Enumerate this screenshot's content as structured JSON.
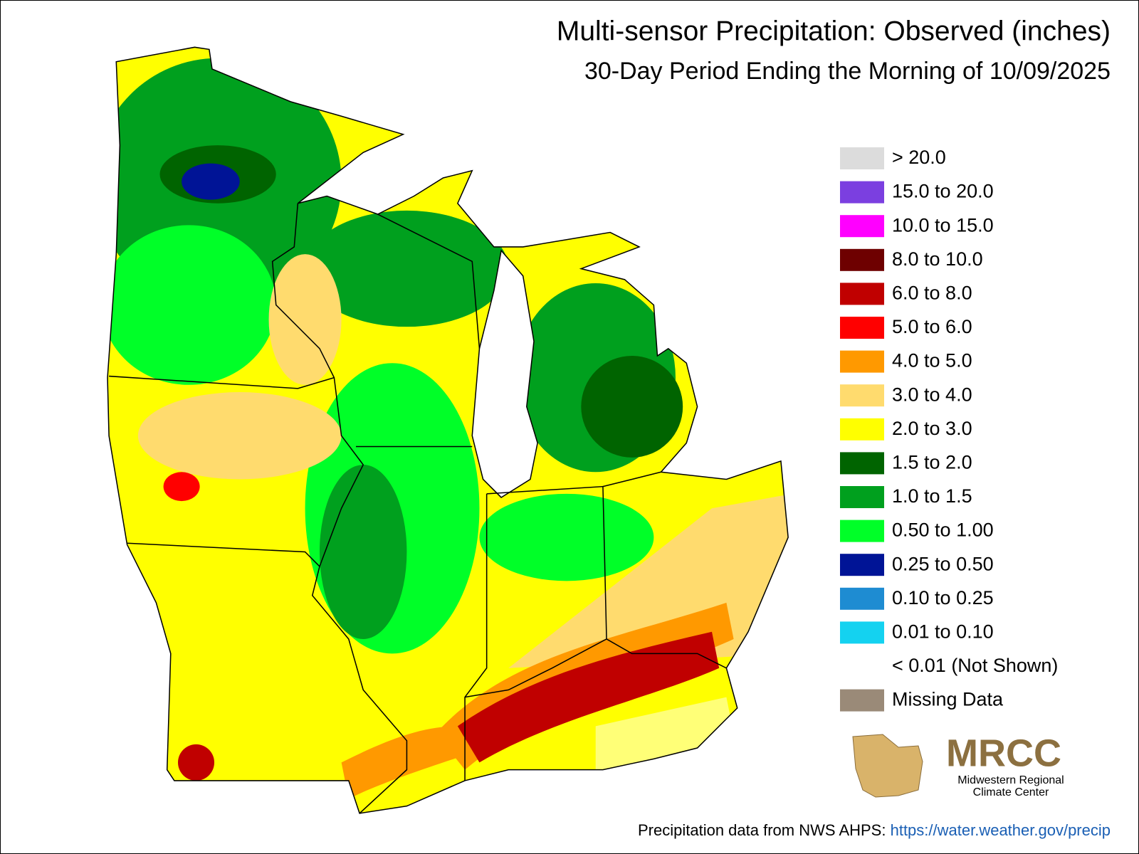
{
  "header": {
    "title": "Multi-sensor Precipitation: Observed (inches)",
    "subtitle": "30-Day Period Ending the Morning of 10/09/2025"
  },
  "legend": [
    {
      "label": "> 20.0",
      "color": "#dcdcdc"
    },
    {
      "label": "15.0 to 20.0",
      "color": "#7b3fe0"
    },
    {
      "label": "10.0 to 15.0",
      "color": "#ff00ff"
    },
    {
      "label": "8.0 to 10.0",
      "color": "#6e0000"
    },
    {
      "label": "6.0 to 8.0",
      "color": "#c00000"
    },
    {
      "label": "5.0 to 6.0",
      "color": "#ff0000"
    },
    {
      "label": "4.0 to 5.0",
      "color": "#ff9900"
    },
    {
      "label": "3.0 to 4.0",
      "color": "#ffdb6e"
    },
    {
      "label": "2.0 to 3.0",
      "color": "#ffff00"
    },
    {
      "label": "1.5 to 2.0",
      "color": "#006400"
    },
    {
      "label": "1.0 to 1.5",
      "color": "#00a01e"
    },
    {
      "label": "0.50 to 1.00",
      "color": "#00ff28"
    },
    {
      "label": "0.25 to 0.50",
      "color": "#001496"
    },
    {
      "label": "0.10 to 0.25",
      "color": "#1e8cd2"
    },
    {
      "label": "0.01 to 0.10",
      "color": "#14d2f0"
    },
    {
      "label": "< 0.01 (Not Shown)"
    },
    {
      "label": "Missing Data",
      "color": "#9a8a78"
    }
  ],
  "logo": {
    "name": "MRCC",
    "line1": "Midwestern Regional",
    "line2": "Climate Center"
  },
  "footer": {
    "credit": "Precipitation data from NWS AHPS:",
    "link": "https://water.weather.gov/precip"
  }
}
